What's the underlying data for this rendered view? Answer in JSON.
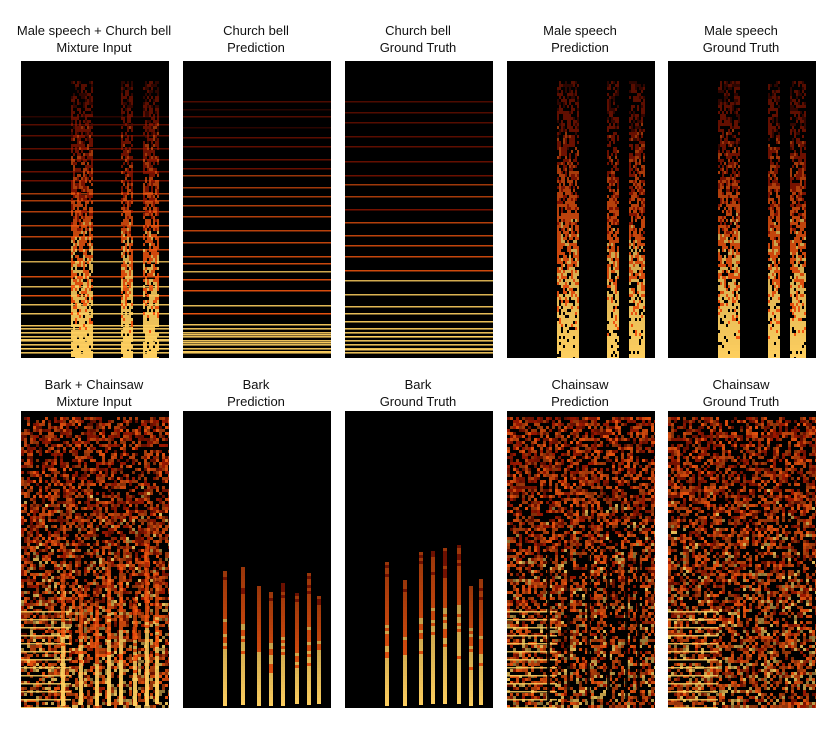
{
  "rows": [
    {
      "panels": [
        {
          "line1": "Male speech + Church bell",
          "line2": "Mixture Input",
          "kind": "bell+speech"
        },
        {
          "line1": "Church bell",
          "line2": "Prediction",
          "kind": "bell-pred"
        },
        {
          "line1": "Church bell",
          "line2": "Ground Truth",
          "kind": "bell-gt"
        },
        {
          "line1": "Male speech",
          "line2": "Prediction",
          "kind": "speech-pred"
        },
        {
          "line1": "Male speech",
          "line2": "Ground Truth",
          "kind": "speech-gt"
        }
      ]
    },
    {
      "panels": [
        {
          "line1": "Bark + Chainsaw",
          "line2": "Mixture Input",
          "kind": "bark+chainsaw"
        },
        {
          "line1": "Bark",
          "line2": "Prediction",
          "kind": "bark-pred"
        },
        {
          "line1": "Bark",
          "line2": "Ground Truth",
          "kind": "bark-gt"
        },
        {
          "line1": "Chainsaw",
          "line2": "Prediction",
          "kind": "chainsaw-pred"
        },
        {
          "line1": "Chainsaw",
          "line2": "Ground Truth",
          "kind": "chainsaw-gt"
        }
      ]
    }
  ],
  "colors": {
    "background": "#000000",
    "dim": "#5a0a00",
    "mid": "#b01a00",
    "bright": "#ff5a10",
    "hot": "#ffd060"
  }
}
